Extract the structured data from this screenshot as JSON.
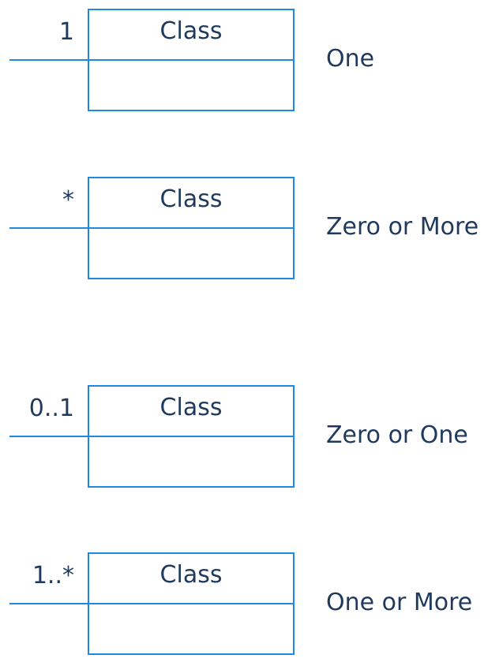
{
  "rows": [
    {
      "multiplicity": "1",
      "class_name": "Class",
      "meaning": "One"
    },
    {
      "multiplicity": "*",
      "class_name": "Class",
      "meaning": "Zero or More"
    },
    {
      "multiplicity": "0..1",
      "class_name": "Class",
      "meaning": "Zero or One"
    },
    {
      "multiplicity": "1..*",
      "class_name": "Class",
      "meaning": "One or More"
    }
  ],
  "colors": {
    "line": "#1e88e5",
    "text": "#1f3a5c",
    "background": "#ffffff"
  }
}
